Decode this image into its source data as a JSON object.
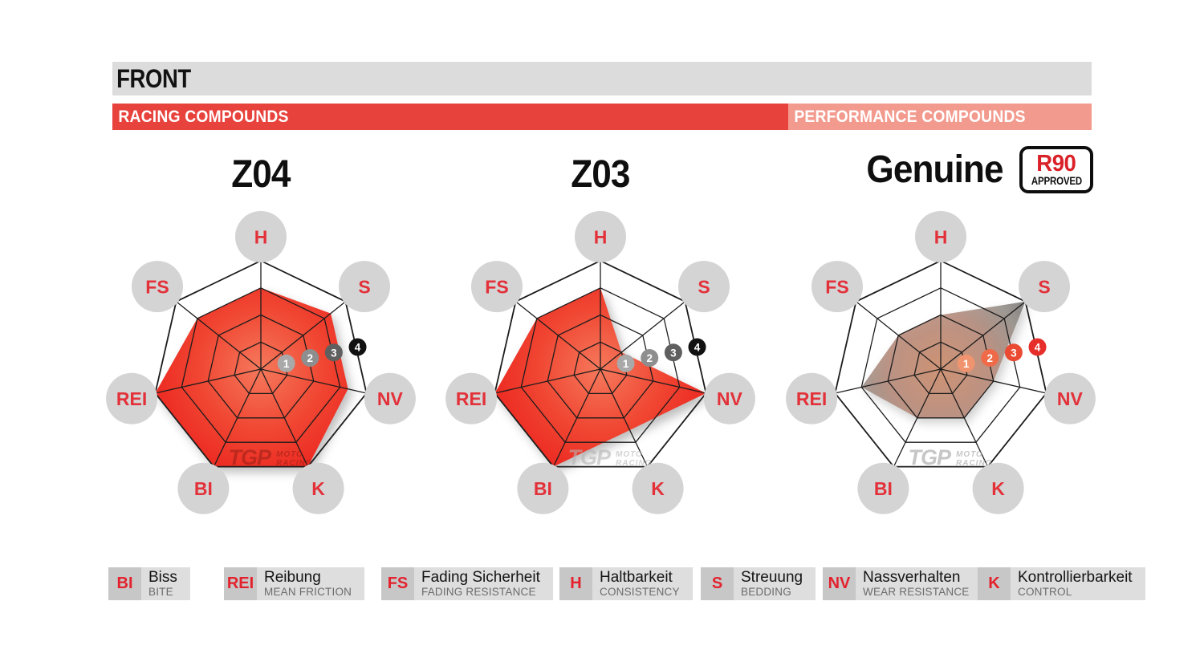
{
  "header": {
    "title": "FRONT",
    "racing_label": "RACING COMPOUNDS",
    "performance_label": "PERFORMANCE COMPOUNDS"
  },
  "genuine_badge": {
    "line1": "R90",
    "line2": "APPROVED"
  },
  "chart_data": [
    {
      "type": "radar",
      "title": "Z04",
      "group": "RACING COMPOUNDS",
      "axes": [
        "H",
        "S",
        "NV",
        "K",
        "BI",
        "REI",
        "FS"
      ],
      "values": [
        3,
        3.3,
        3.3,
        4,
        4,
        4,
        3
      ],
      "scale_markers": [
        1,
        2,
        3,
        4
      ],
      "axis_range": [
        0,
        4
      ],
      "fill": "red",
      "marker_palette": "gray",
      "watermark": {
        "logo": "TGP",
        "sub1": "MOTO",
        "sub2": "RACING",
        "color": "#8f1d14",
        "opacity": 0.5
      }
    },
    {
      "type": "radar",
      "title": "Z03",
      "group": "RACING COMPOUNDS",
      "axes": [
        "H",
        "S",
        "NV",
        "K",
        "BI",
        "REI",
        "FS"
      ],
      "values": [
        3,
        1,
        4,
        2.5,
        4,
        4,
        3
      ],
      "scale_markers": [
        1,
        2,
        3,
        4
      ],
      "axis_range": [
        0,
        4
      ],
      "fill": "red",
      "marker_palette": "gray",
      "watermark": {
        "logo": "TGP",
        "sub1": "MOTO",
        "sub2": "RACING",
        "color": "#b5b5b5",
        "opacity": 0.6
      }
    },
    {
      "type": "radar",
      "title": "Genuine",
      "group": "PERFORMANCE COMPOUNDS",
      "badge": "R90 APPROVED",
      "axes": [
        "H",
        "S",
        "NV",
        "K",
        "BI",
        "REI",
        "FS"
      ],
      "values": [
        2,
        4,
        2,
        2,
        2,
        3,
        2
      ],
      "scale_markers": [
        1,
        2,
        3,
        4
      ],
      "axis_range": [
        0,
        4
      ],
      "fill": "warm_gray",
      "marker_palette": "red",
      "watermark": {
        "logo": "TGP",
        "sub1": "MOTO",
        "sub2": "RACING",
        "color": "#a8a8a8",
        "opacity": 0.65
      }
    }
  ],
  "style": {
    "grid_color": "#1c1c1c",
    "axis_label_color": "#e3313a",
    "axis_label_circle": "#d4d4d4",
    "marker_palettes": {
      "gray": [
        "#a9a9a9",
        "#8e8e8e",
        "#5f5f5f",
        "#111111"
      ],
      "red": [
        "#f0936f",
        "#ee6a48",
        "#ea4a31",
        "#e62f2b"
      ]
    },
    "fills": {
      "red": [
        [
          "0%",
          "#f5795c",
          1
        ],
        [
          "55%",
          "#f04632",
          1
        ],
        [
          "100%",
          "#ec2620",
          1
        ]
      ],
      "warm_gray": [
        [
          "0%",
          "#cf9171",
          0.95
        ],
        [
          "45%",
          "#b98d7d",
          0.92
        ],
        [
          "75%",
          "#97908a",
          0.9
        ],
        [
          "100%",
          "#6f6f6f",
          0.88
        ]
      ]
    },
    "bar_red": "#e8423c",
    "bar_salmon": "#f39a8e",
    "bar_gray": "#dcdcdc"
  },
  "legend": {
    "items": [
      {
        "abbr": "BI",
        "de": "Biss",
        "en": "BITE"
      },
      {
        "abbr": "REI",
        "de": "Reibung",
        "en": "MEAN FRICTION"
      },
      {
        "abbr": "FS",
        "de": "Fading Sicherheit",
        "en": "FADING RESISTANCE"
      },
      {
        "abbr": "H",
        "de": "Haltbarkeit",
        "en": "CONSISTENCY"
      },
      {
        "abbr": "S",
        "de": "Streuung",
        "en": "BEDDING"
      },
      {
        "abbr": "NV",
        "de": "Nassverhalten",
        "en": "WEAR RESISTANCE"
      },
      {
        "abbr": "K",
        "de": "Kontrollierbarkeit",
        "en": "CONTROL"
      }
    ]
  }
}
